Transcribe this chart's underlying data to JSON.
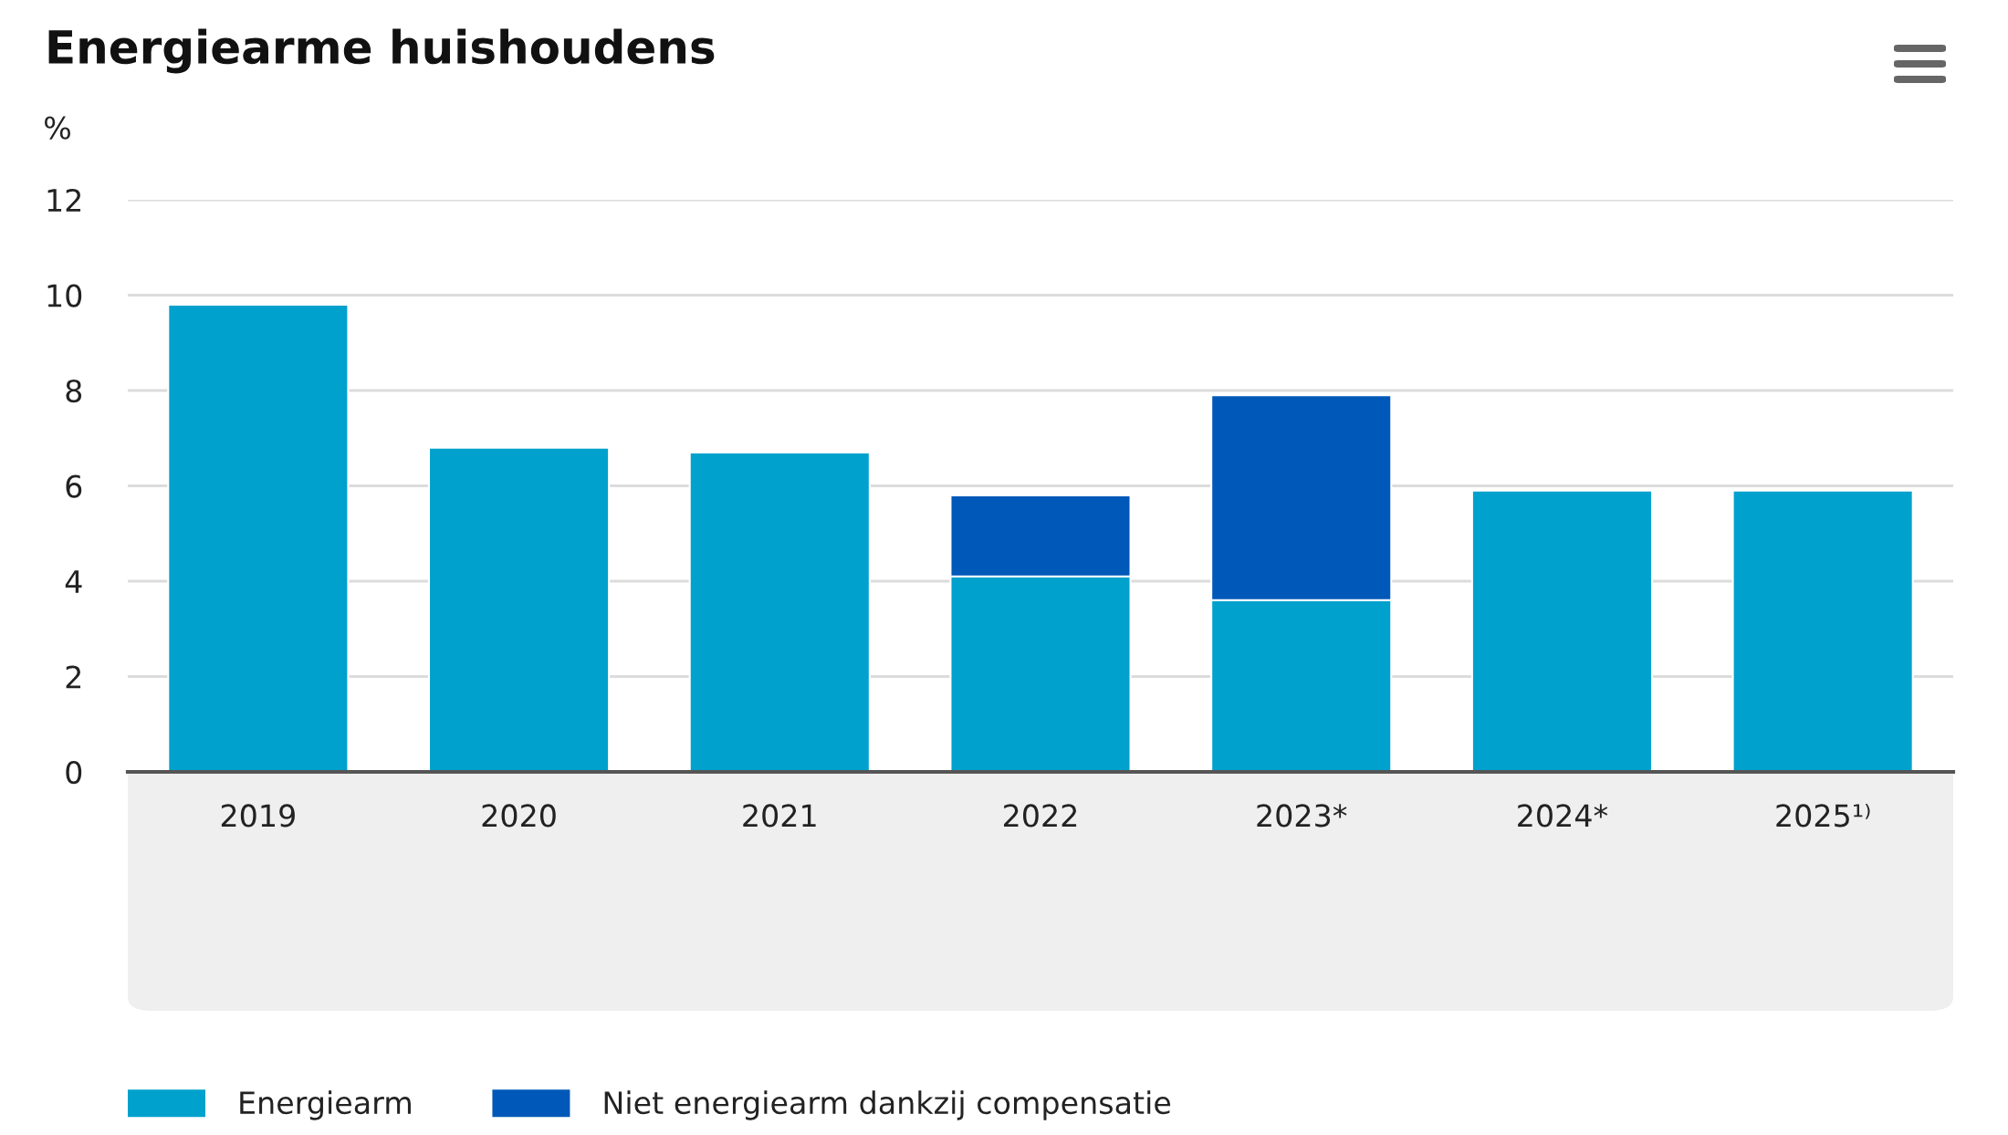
{
  "chart_data": {
    "type": "bar",
    "title": "Energiearme huishoudens",
    "ylabel": "%",
    "categories": [
      "2019",
      "2020",
      "2021",
      "2022",
      "2023*",
      "2024*",
      "2025¹⁾"
    ],
    "series": [
      {
        "name": "Energiearm",
        "color": "#00a1cd",
        "values": [
          9.8,
          6.8,
          6.7,
          4.1,
          3.6,
          5.9,
          5.9
        ]
      },
      {
        "name": "Niet energiearm dankzij compensatie",
        "color": "#0058b8",
        "values": [
          null,
          null,
          null,
          1.7,
          4.3,
          null,
          null
        ]
      }
    ],
    "stacked": true,
    "ylim": [
      0,
      12
    ],
    "yticks": [
      0,
      2,
      4,
      6,
      8,
      10,
      12
    ],
    "grid": "y",
    "legend": "bottom left"
  }
}
